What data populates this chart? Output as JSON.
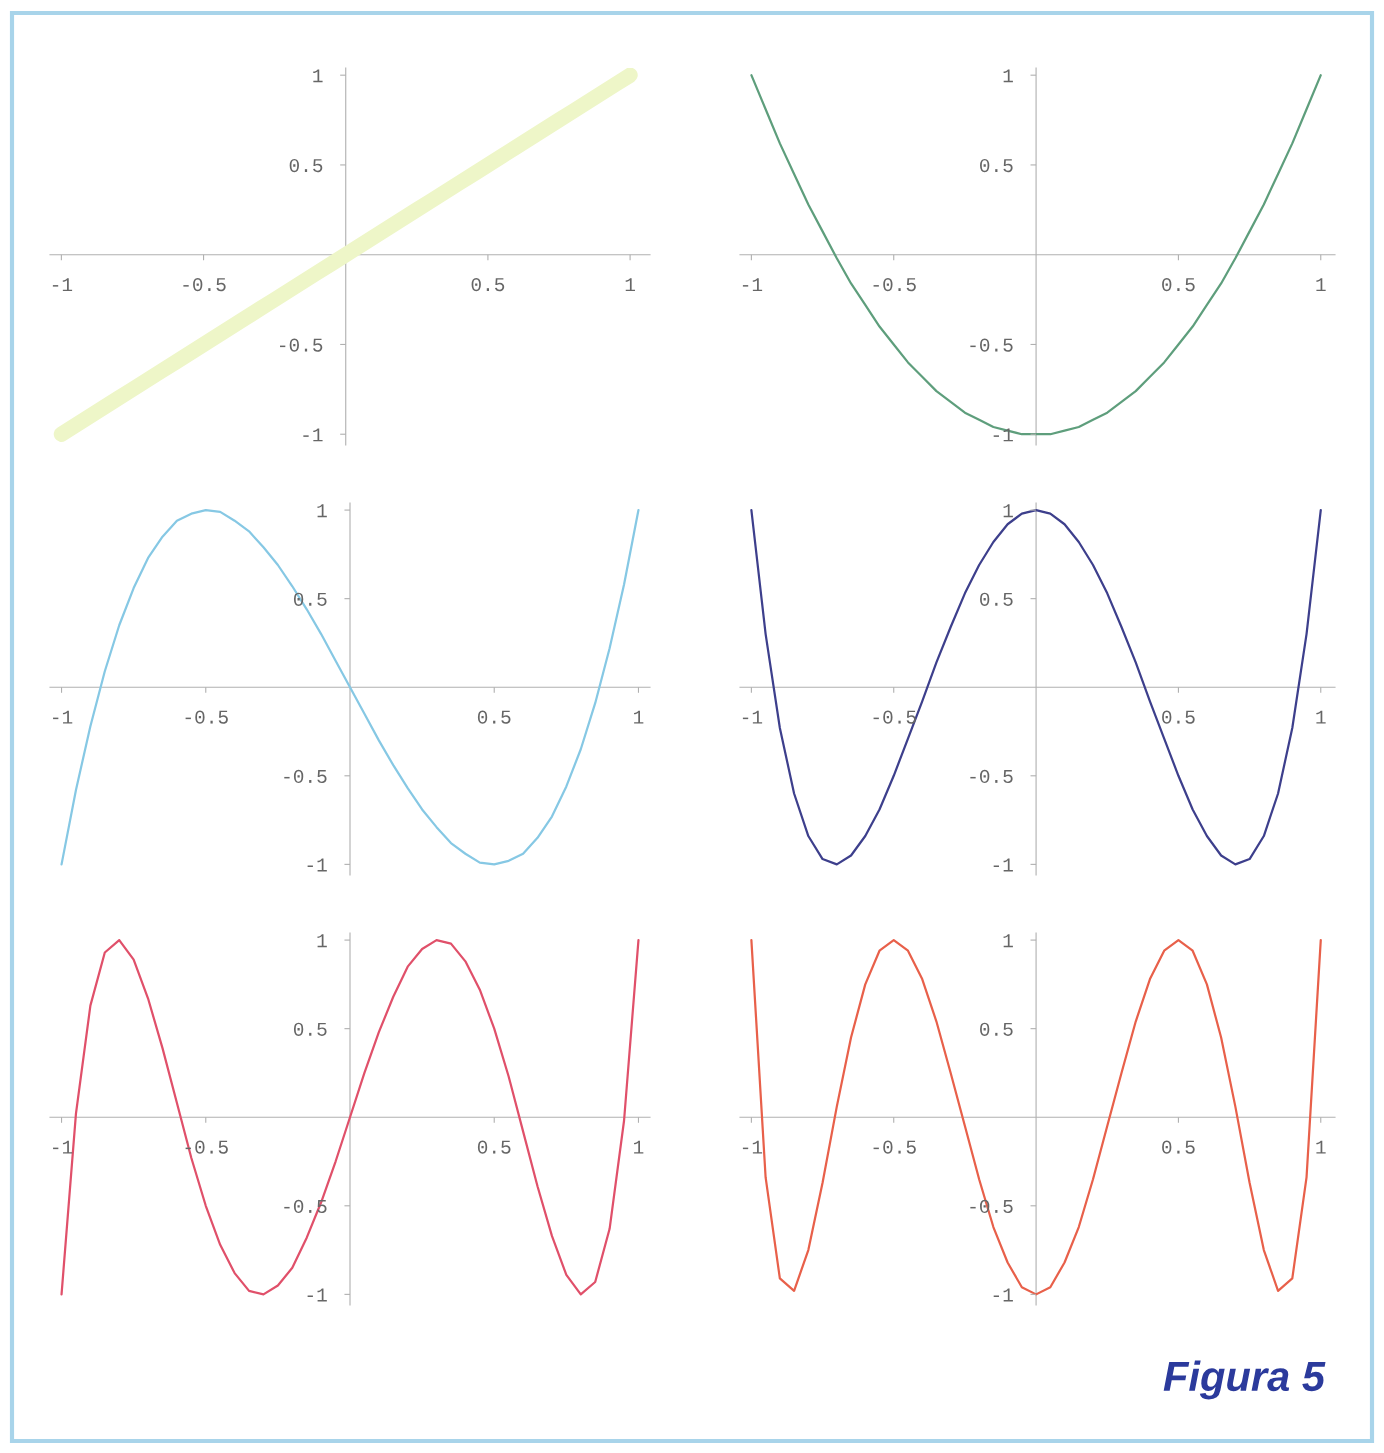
{
  "chart_data": [
    {
      "type": "line",
      "x": [
        -1,
        -0.95,
        -0.9,
        -0.85,
        -0.8,
        -0.75,
        -0.7,
        -0.65,
        -0.6,
        -0.55,
        -0.5,
        -0.45,
        -0.4,
        -0.35,
        -0.3,
        -0.25,
        -0.2,
        -0.15,
        -0.1,
        -0.05,
        0,
        0.05,
        0.1,
        0.15,
        0.2,
        0.25,
        0.3,
        0.35,
        0.4,
        0.45,
        0.5,
        0.55,
        0.6,
        0.65,
        0.7,
        0.75,
        0.8,
        0.85,
        0.9,
        0.95,
        1
      ],
      "series": [
        {
          "color": "#eef6c8",
          "values": [
            -1,
            -0.95,
            -0.9,
            -0.85,
            -0.8,
            -0.75,
            -0.7,
            -0.65,
            -0.6,
            -0.55,
            -0.5,
            -0.45,
            -0.4,
            -0.35,
            -0.3,
            -0.25,
            -0.2,
            -0.15,
            -0.1,
            -0.05,
            0,
            0.05,
            0.1,
            0.15,
            0.2,
            0.25,
            0.3,
            0.35,
            0.4,
            0.45,
            0.5,
            0.55,
            0.6,
            0.65,
            0.7,
            0.75,
            0.8,
            0.85,
            0.9,
            0.95,
            1
          ]
        }
      ],
      "xlim": [
        -1.04,
        1.07
      ],
      "ylim": [
        -1.06,
        1.04
      ],
      "xticks": [
        -1,
        -0.5,
        0.5,
        1
      ],
      "yticks": [
        -1,
        -0.5,
        0.5,
        1
      ],
      "grid": false,
      "legend": false
    },
    {
      "type": "line",
      "x": [
        -1,
        -0.95,
        -0.9,
        -0.85,
        -0.8,
        -0.75,
        -0.7,
        -0.65,
        -0.6,
        -0.55,
        -0.5,
        -0.45,
        -0.4,
        -0.35,
        -0.3,
        -0.25,
        -0.2,
        -0.15,
        -0.1,
        -0.05,
        0,
        0.05,
        0.1,
        0.15,
        0.2,
        0.25,
        0.3,
        0.35,
        0.4,
        0.45,
        0.5,
        0.55,
        0.6,
        0.65,
        0.7,
        0.75,
        0.8,
        0.85,
        0.9,
        0.95,
        1
      ],
      "series": [
        {
          "color": "#5e9e7c",
          "values": [
            1,
            0.81,
            0.62,
            0.45,
            0.28,
            0.13,
            -0.02,
            -0.16,
            -0.28,
            -0.4,
            -0.5,
            -0.6,
            -0.68,
            -0.76,
            -0.82,
            -0.88,
            -0.92,
            -0.96,
            -0.98,
            -1,
            -1,
            -1,
            -0.98,
            -0.96,
            -0.92,
            -0.88,
            -0.82,
            -0.76,
            -0.68,
            -0.6,
            -0.5,
            -0.4,
            -0.28,
            -0.16,
            -0.02,
            0.13,
            0.28,
            0.45,
            0.62,
            0.81,
            1
          ]
        }
      ],
      "xlim": [
        -1.04,
        1.05
      ],
      "ylim": [
        -1.06,
        1.04
      ],
      "xticks": [
        -1,
        -0.5,
        0.5,
        1
      ],
      "yticks": [
        -1,
        -0.5,
        0.5,
        1
      ],
      "grid": false,
      "legend": false
    },
    {
      "type": "line",
      "x": [
        -1,
        -0.95,
        -0.9,
        -0.85,
        -0.8,
        -0.75,
        -0.7,
        -0.65,
        -0.6,
        -0.55,
        -0.5,
        -0.45,
        -0.4,
        -0.35,
        -0.3,
        -0.25,
        -0.2,
        -0.15,
        -0.1,
        -0.05,
        0,
        0.05,
        0.1,
        0.15,
        0.2,
        0.25,
        0.3,
        0.35,
        0.4,
        0.45,
        0.5,
        0.55,
        0.6,
        0.65,
        0.7,
        0.75,
        0.8,
        0.85,
        0.9,
        0.95,
        1
      ],
      "series": [
        {
          "color": "#86c8e4",
          "values": [
            -1,
            -0.58,
            -0.22,
            0.09,
            0.35,
            0.56,
            0.73,
            0.85,
            0.94,
            0.98,
            1,
            0.99,
            0.94,
            0.88,
            0.79,
            0.69,
            0.57,
            0.44,
            0.3,
            0.15,
            0,
            -0.15,
            -0.3,
            -0.44,
            -0.57,
            -0.69,
            -0.79,
            -0.88,
            -0.94,
            -0.99,
            -1,
            -0.98,
            -0.94,
            -0.85,
            -0.73,
            -0.56,
            -0.35,
            -0.09,
            0.22,
            0.58,
            1
          ]
        }
      ],
      "xlim": [
        -1.04,
        1.04
      ],
      "ylim": [
        -1.06,
        1.04
      ],
      "xticks": [
        -1,
        -0.5,
        0.5,
        1
      ],
      "yticks": [
        -1,
        -0.5,
        0.5,
        1
      ],
      "grid": false,
      "legend": false
    },
    {
      "type": "line",
      "x": [
        -1,
        -0.95,
        -0.9,
        -0.85,
        -0.8,
        -0.75,
        -0.7,
        -0.65,
        -0.6,
        -0.55,
        -0.5,
        -0.45,
        -0.4,
        -0.35,
        -0.3,
        -0.25,
        -0.2,
        -0.15,
        -0.1,
        -0.05,
        0,
        0.05,
        0.1,
        0.15,
        0.2,
        0.25,
        0.3,
        0.35,
        0.4,
        0.45,
        0.5,
        0.55,
        0.6,
        0.65,
        0.7,
        0.75,
        0.8,
        0.85,
        0.9,
        0.95,
        1
      ],
      "series": [
        {
          "color": "#3d3f8c",
          "values": [
            1,
            0.3,
            -0.23,
            -0.6,
            -0.84,
            -0.97,
            -1,
            -0.95,
            -0.84,
            -0.69,
            -0.5,
            -0.29,
            -0.08,
            0.14,
            0.34,
            0.53,
            0.69,
            0.82,
            0.92,
            0.98,
            1,
            0.98,
            0.92,
            0.82,
            0.69,
            0.53,
            0.34,
            0.14,
            -0.08,
            -0.29,
            -0.5,
            -0.69,
            -0.84,
            -0.95,
            -1,
            -0.97,
            -0.84,
            -0.6,
            -0.23,
            0.3,
            1
          ]
        }
      ],
      "xlim": [
        -1.04,
        1.05
      ],
      "ylim": [
        -1.06,
        1.04
      ],
      "xticks": [
        -1,
        -0.5,
        0.5,
        1
      ],
      "yticks": [
        -1,
        -0.5,
        0.5,
        1
      ],
      "grid": false,
      "legend": false
    },
    {
      "type": "line",
      "x": [
        -1,
        -0.95,
        -0.9,
        -0.85,
        -0.8,
        -0.75,
        -0.7,
        -0.65,
        -0.6,
        -0.55,
        -0.5,
        -0.45,
        -0.4,
        -0.35,
        -0.3,
        -0.25,
        -0.2,
        -0.15,
        -0.1,
        -0.05,
        0,
        0.05,
        0.1,
        0.15,
        0.2,
        0.25,
        0.3,
        0.35,
        0.4,
        0.45,
        0.5,
        0.55,
        0.6,
        0.65,
        0.7,
        0.75,
        0.8,
        0.85,
        0.9,
        0.95,
        1
      ],
      "series": [
        {
          "color": "#e0506a",
          "values": [
            -1,
            0.02,
            0.63,
            0.93,
            1,
            0.89,
            0.67,
            0.39,
            0.08,
            -0.23,
            -0.5,
            -0.72,
            -0.88,
            -0.98,
            -1,
            -0.95,
            -0.85,
            -0.68,
            -0.48,
            -0.25,
            0,
            0.25,
            0.48,
            0.68,
            0.85,
            0.95,
            1,
            0.98,
            0.88,
            0.72,
            0.5,
            0.23,
            -0.08,
            -0.39,
            -0.67,
            -0.89,
            -1,
            -0.93,
            -0.63,
            -0.02,
            1
          ]
        }
      ],
      "xlim": [
        -1.04,
        1.04
      ],
      "ylim": [
        -1.06,
        1.04
      ],
      "xticks": [
        -1,
        -0.5,
        0.5,
        1
      ],
      "yticks": [
        -1,
        -0.5,
        0.5,
        1
      ],
      "grid": false,
      "legend": false
    },
    {
      "type": "line",
      "x": [
        -1,
        -0.95,
        -0.9,
        -0.85,
        -0.8,
        -0.75,
        -0.7,
        -0.65,
        -0.6,
        -0.55,
        -0.5,
        -0.45,
        -0.4,
        -0.35,
        -0.3,
        -0.25,
        -0.2,
        -0.15,
        -0.1,
        -0.05,
        0,
        0.05,
        0.1,
        0.15,
        0.2,
        0.25,
        0.3,
        0.35,
        0.4,
        0.45,
        0.5,
        0.55,
        0.6,
        0.65,
        0.7,
        0.75,
        0.8,
        0.85,
        0.9,
        0.95,
        1
      ],
      "series": [
        {
          "color": "#e8604a",
          "values": [
            1,
            -0.34,
            -0.91,
            -0.98,
            -0.75,
            -0.37,
            0.06,
            0.45,
            0.75,
            0.94,
            1,
            0.94,
            0.78,
            0.54,
            0.25,
            -0.05,
            -0.35,
            -0.62,
            -0.82,
            -0.96,
            -1,
            -0.96,
            -0.82,
            -0.62,
            -0.35,
            -0.05,
            0.25,
            0.54,
            0.78,
            0.94,
            1,
            0.94,
            0.75,
            0.45,
            0.06,
            -0.37,
            -0.75,
            -0.98,
            -0.91,
            -0.34,
            1
          ]
        }
      ],
      "xlim": [
        -1.04,
        1.05
      ],
      "ylim": [
        -1.06,
        1.04
      ],
      "xticks": [
        -1,
        -0.5,
        0.5,
        1
      ],
      "yticks": [
        -1,
        -0.5,
        0.5,
        1
      ],
      "grid": false,
      "legend": false,
      "annotations": [
        "Figura 5"
      ]
    }
  ]
}
